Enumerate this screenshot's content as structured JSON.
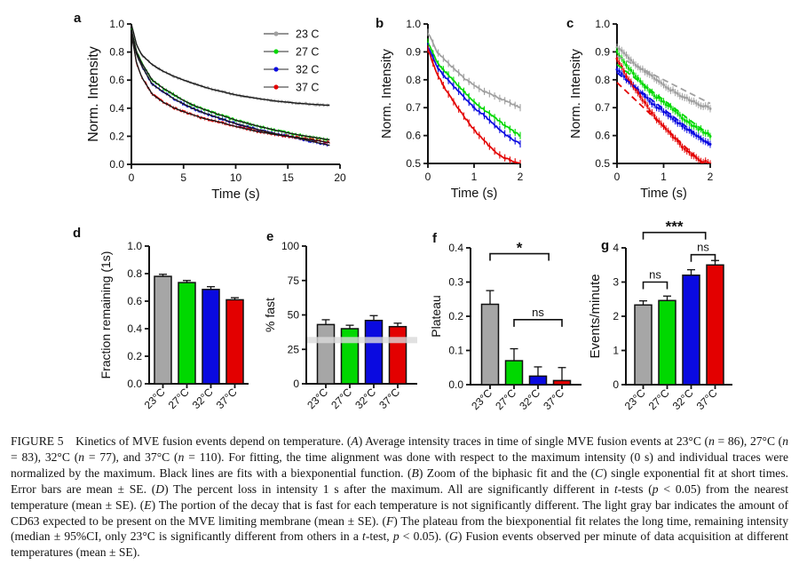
{
  "palette": {
    "gray": "#a0a0a0",
    "green": "#00d800",
    "blue": "#0a0ae0",
    "red": "#e30000",
    "fit_black": "#1a1a1a",
    "band_gray": "#d9d9d9",
    "axis_black": "#111111"
  },
  "chart_data": [
    {
      "id": "a",
      "panel_label": "a",
      "type": "line",
      "render": "noisy",
      "xlabel": "Time (s)",
      "ylabel": "Norm. Intensity",
      "xlim": [
        0,
        20
      ],
      "ylim": [
        0,
        1
      ],
      "xticks": [
        0,
        5,
        10,
        15,
        20
      ],
      "xtick_labels": [
        "0",
        "5",
        "10",
        "15",
        "20"
      ],
      "yticks": [
        0,
        0.2,
        0.4,
        0.6,
        0.8,
        1
      ],
      "ytick_labels": [
        "0.0",
        "0.2",
        "0.4",
        "0.6",
        "0.8",
        "1.0"
      ],
      "legend": true,
      "legend_position": "top-right",
      "x": [
        0,
        0.5,
        1,
        2,
        3,
        4,
        5,
        6,
        7,
        8,
        10,
        12,
        14,
        16,
        19
      ],
      "series": [
        {
          "name": "23 C",
          "color": "#a0a0a0",
          "y": [
            1.0,
            0.85,
            0.78,
            0.71,
            0.665,
            0.63,
            0.6,
            0.575,
            0.55,
            0.53,
            0.495,
            0.47,
            0.45,
            0.435,
            0.42
          ]
        },
        {
          "name": "27 C",
          "color": "#00d800",
          "y": [
            0.96,
            0.8,
            0.72,
            0.6,
            0.545,
            0.5,
            0.455,
            0.42,
            0.39,
            0.365,
            0.315,
            0.275,
            0.24,
            0.21,
            0.175
          ]
        },
        {
          "name": "32 C",
          "color": "#0a0ae0",
          "y": [
            0.95,
            0.78,
            0.7,
            0.57,
            0.52,
            0.47,
            0.43,
            0.395,
            0.365,
            0.34,
            0.29,
            0.25,
            0.215,
            0.185,
            0.135
          ]
        },
        {
          "name": "37 C",
          "color": "#e30000",
          "y": [
            0.93,
            0.72,
            0.62,
            0.5,
            0.445,
            0.405,
            0.375,
            0.35,
            0.325,
            0.31,
            0.27,
            0.235,
            0.21,
            0.19,
            0.155
          ]
        }
      ],
      "fit": "black-biexponential"
    },
    {
      "id": "b",
      "panel_label": "b",
      "type": "line",
      "render": "smooth-err",
      "xlabel": "Time (s)",
      "ylabel": "Norm. Intensity",
      "xlim": [
        0,
        2
      ],
      "ylim": [
        0.5,
        1
      ],
      "xticks": [
        0,
        1,
        2
      ],
      "xtick_labels": [
        "0",
        "1",
        "2"
      ],
      "yticks": [
        0.5,
        0.6,
        0.7,
        0.8,
        0.9,
        1
      ],
      "ytick_labels": [
        "0.5",
        "0.6",
        "0.7",
        "0.8",
        "0.9",
        "1.0"
      ],
      "legend": false,
      "x": [
        0,
        0.2,
        0.4,
        0.6,
        0.8,
        1.0,
        1.2,
        1.4,
        1.6,
        1.8,
        2.0
      ],
      "series": [
        {
          "name": "23 C",
          "color": "#a0a0a0",
          "y": [
            0.97,
            0.9,
            0.865,
            0.835,
            0.805,
            0.78,
            0.76,
            0.745,
            0.73,
            0.715,
            0.7
          ]
        },
        {
          "name": "27 C",
          "color": "#00d800",
          "y": [
            0.935,
            0.86,
            0.825,
            0.79,
            0.755,
            0.72,
            0.695,
            0.67,
            0.645,
            0.62,
            0.6
          ]
        },
        {
          "name": "32 C",
          "color": "#0a0ae0",
          "y": [
            0.92,
            0.845,
            0.805,
            0.77,
            0.735,
            0.7,
            0.675,
            0.645,
            0.615,
            0.59,
            0.57
          ]
        },
        {
          "name": "37 C",
          "color": "#e30000",
          "y": [
            0.91,
            0.82,
            0.76,
            0.71,
            0.665,
            0.62,
            0.585,
            0.55,
            0.525,
            0.51,
            0.5
          ]
        }
      ]
    },
    {
      "id": "c",
      "panel_label": "c",
      "type": "line",
      "render": "points-dashfit",
      "xlabel": "Time (s)",
      "ylabel": "Norm. Intensity",
      "xlim": [
        0,
        2
      ],
      "ylim": [
        0.5,
        1
      ],
      "xticks": [
        0,
        1,
        2
      ],
      "xtick_labels": [
        "0",
        "1",
        "2"
      ],
      "yticks": [
        0.5,
        0.6,
        0.7,
        0.8,
        0.9,
        1
      ],
      "ytick_labels": [
        "0.5",
        "0.6",
        "0.7",
        "0.8",
        "0.9",
        "1.0"
      ],
      "legend": false,
      "x": [
        0,
        0.2,
        0.4,
        0.6,
        0.8,
        1.0,
        1.2,
        1.4,
        1.6,
        1.8,
        2.0
      ],
      "series": [
        {
          "name": "23 C",
          "color": "#a0a0a0",
          "y": [
            0.92,
            0.885,
            0.855,
            0.83,
            0.805,
            0.78,
            0.76,
            0.74,
            0.725,
            0.71,
            0.7
          ],
          "fit": [
            0.885,
            0.715
          ]
        },
        {
          "name": "27 C",
          "color": "#00d800",
          "y": [
            0.9,
            0.85,
            0.81,
            0.775,
            0.745,
            0.72,
            0.695,
            0.665,
            0.64,
            0.62,
            0.6
          ],
          "fit": [
            0.855,
            0.6
          ]
        },
        {
          "name": "32 C",
          "color": "#0a0ae0",
          "y": [
            0.84,
            0.8,
            0.77,
            0.74,
            0.71,
            0.685,
            0.66,
            0.635,
            0.61,
            0.59,
            0.57
          ],
          "fit": [
            0.825,
            0.565
          ]
        },
        {
          "name": "37 C",
          "color": "#e30000",
          "y": [
            0.875,
            0.815,
            0.765,
            0.715,
            0.67,
            0.63,
            0.595,
            0.56,
            0.53,
            0.51,
            0.5
          ],
          "fit": [
            0.79,
            0.475
          ]
        }
      ],
      "fit_style": "dashed-single-exponential"
    },
    {
      "id": "d",
      "panel_label": "d",
      "type": "bar",
      "ylabel": "Fraction remaining (1s)",
      "ylim": [
        0,
        1
      ],
      "yticks": [
        0,
        0.2,
        0.4,
        0.6,
        0.8,
        1
      ],
      "ytick_labels": [
        "0.0",
        "0.2",
        "0.4",
        "0.6",
        "0.8",
        "1.0"
      ],
      "categories": [
        "23°C",
        "27°C",
        "32°C",
        "37°C"
      ],
      "values": [
        0.78,
        0.735,
        0.685,
        0.61
      ],
      "errors": [
        0.015,
        0.015,
        0.02,
        0.015
      ],
      "colors": [
        "#a6a6a6",
        "#00d800",
        "#0a0ae0",
        "#e30000"
      ]
    },
    {
      "id": "e",
      "panel_label": "e",
      "type": "bar",
      "ylabel": "% fast",
      "ylim": [
        0,
        100
      ],
      "yticks": [
        0,
        25,
        50,
        75,
        100
      ],
      "ytick_labels": [
        "0",
        "25",
        "50",
        "75",
        "100"
      ],
      "categories": [
        "23°C",
        "27°C",
        "32°C",
        "37°C"
      ],
      "values": [
        43,
        40,
        46,
        41.5
      ],
      "errors": [
        3.5,
        2.5,
        3.5,
        2.5
      ],
      "colors": [
        "#a6a6a6",
        "#00d800",
        "#0a0ae0",
        "#e30000"
      ],
      "band": [
        29.5,
        34
      ]
    },
    {
      "id": "f",
      "panel_label": "f",
      "type": "bar",
      "ylabel": "Plateau",
      "ylim": [
        0,
        0.4
      ],
      "yticks": [
        0,
        0.1,
        0.2,
        0.3,
        0.4
      ],
      "ytick_labels": [
        "0.0",
        "0.1",
        "0.2",
        "0.3",
        "0.4"
      ],
      "categories": [
        "23°C",
        "27°C",
        "32°C",
        "37°C"
      ],
      "values": [
        0.235,
        0.07,
        0.025,
        0.012
      ],
      "errors": [
        0.04,
        0.035,
        0.027,
        0.038
      ],
      "colors": [
        "#a6a6a6",
        "#00d800",
        "#0a0ae0",
        "#e30000"
      ],
      "brackets": [
        {
          "label": "*",
          "x1": 0,
          "x2": 2.45,
          "y": 0.383
        },
        {
          "label": "ns",
          "x1": 1,
          "x2": 3,
          "y": 0.19
        }
      ]
    },
    {
      "id": "g",
      "panel_label": "g",
      "type": "bar",
      "ylabel": "Events/minute",
      "ylim": [
        0,
        4
      ],
      "yticks": [
        0,
        1,
        2,
        3,
        4
      ],
      "ytick_labels": [
        "0",
        "1",
        "2",
        "3",
        "4"
      ],
      "categories": [
        "23°C",
        "27°C",
        "32°C",
        "37°C"
      ],
      "values": [
        2.33,
        2.46,
        3.2,
        3.5
      ],
      "errors": [
        0.12,
        0.13,
        0.16,
        0.13
      ],
      "colors": [
        "#a6a6a6",
        "#00d800",
        "#0a0ae0",
        "#e30000"
      ],
      "brackets": [
        {
          "label": "ns",
          "x1": 0,
          "x2": 1,
          "y": 3.0
        },
        {
          "label": "ns",
          "x1": 2,
          "x2": 3,
          "y": 3.8
        },
        {
          "label": "***",
          "x1": 0,
          "x2": 2.6,
          "y": 4.45
        }
      ]
    }
  ],
  "caption": {
    "segments": [
      {
        "t": "FIGURE 5"
      },
      {
        "t": "  Kinetics of MVE fusion events depend on temperature. ("
      },
      {
        "t": "A",
        "i": true
      },
      {
        "t": ") Average intensity traces in time of single MVE fusion events at 23°C ("
      },
      {
        "t": "n",
        "i": true
      },
      {
        "t": " = 86), 27°C ("
      },
      {
        "t": "n",
        "i": true
      },
      {
        "t": " = 83), 32°C ("
      },
      {
        "t": "n",
        "i": true
      },
      {
        "t": " = 77), and 37°C ("
      },
      {
        "t": "n",
        "i": true
      },
      {
        "t": " = 110). For fitting, the time alignment was done with respect to the maximum intensity (0 s) and individual traces were normalized by the maximum. Black lines are fits with a biexponential function. ("
      },
      {
        "t": "B",
        "i": true
      },
      {
        "t": ") Zoom of the biphasic fit and the ("
      },
      {
        "t": "C",
        "i": true
      },
      {
        "t": ") single exponential fit at short times. Error bars are mean ± SE. ("
      },
      {
        "t": "D",
        "i": true
      },
      {
        "t": ") The percent loss in intensity 1 s after the maximum. All are significantly different in "
      },
      {
        "t": "t",
        "i": true
      },
      {
        "t": "-tests ("
      },
      {
        "t": "p",
        "i": true
      },
      {
        "t": " < 0.05) from the nearest temperature (mean ± SE). ("
      },
      {
        "t": "E",
        "i": true
      },
      {
        "t": ") The portion of the decay that is fast for each temperature is not significantly different. The light gray bar indicates the amount of CD63 expected to be present on the MVE limiting membrane (mean ± SE). ("
      },
      {
        "t": "F",
        "i": true
      },
      {
        "t": ") The plateau from the biexponential fit relates the long time, remaining intensity (median ± 95%CI, only 23°C is significantly different from others in a "
      },
      {
        "t": "t",
        "i": true
      },
      {
        "t": "-test, "
      },
      {
        "t": "p",
        "i": true
      },
      {
        "t": " < 0.05). ("
      },
      {
        "t": "G",
        "i": true
      },
      {
        "t": ") Fusion events observed per minute of data acquisition at different temperatures (mean ± SE)."
      }
    ]
  }
}
